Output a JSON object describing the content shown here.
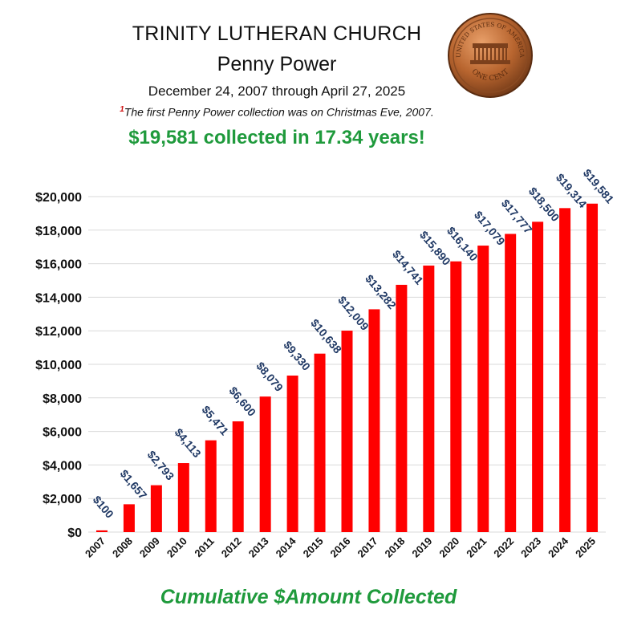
{
  "header": {
    "title": "TRINITY LUTHERAN CHURCH",
    "subtitle": "Penny Power",
    "date_range": "December 24, 2007 through April 27, 2025",
    "footnote_marker": "1",
    "footnote": "The first Penny Power collection was on Christmas Eve, 2007.",
    "highlight": "$19,581 collected in 17.34 years!"
  },
  "penny": {
    "top_text": "UNITED STATES OF AMERICA",
    "bottom_text": "ONE CENT"
  },
  "chart_data": {
    "type": "bar",
    "title": "Cumulative $Amount Collected",
    "categories": [
      "2007",
      "2008",
      "2009",
      "2010",
      "2011",
      "2012",
      "2013",
      "2014",
      "2015",
      "2016",
      "2017",
      "2018",
      "2019",
      "2020",
      "2021",
      "2022",
      "2023",
      "2024",
      "2025"
    ],
    "values": [
      100,
      1657,
      2793,
      4113,
      5471,
      6600,
      8079,
      9330,
      10638,
      12009,
      13282,
      14741,
      15890,
      16140,
      17079,
      17777,
      18500,
      19314,
      19581
    ],
    "data_labels": [
      "$100",
      "$1,657",
      "$2,793",
      "$4,113",
      "$5,471",
      "$6,600",
      "$8,079",
      "$9,330",
      "$10,638",
      "$12,009",
      "$13,282",
      "$14,741",
      "$15,890",
      "$16,140",
      "$17,079",
      "$17,777",
      "$18,500",
      "$19,314",
      "$19,581"
    ],
    "yticks": [
      "$0",
      "$2,000",
      "$4,000",
      "$6,000",
      "$8,000",
      "$10,000",
      "$12,000",
      "$14,000",
      "$16,000",
      "$18,000",
      "$20,000"
    ],
    "ylim": [
      0,
      20000
    ],
    "grid": true,
    "bar_color": "#ff0000",
    "label_color": "#1f3864"
  }
}
